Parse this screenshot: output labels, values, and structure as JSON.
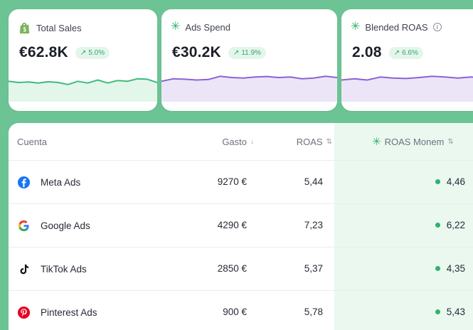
{
  "cards": [
    {
      "label": "Total Sales",
      "value": "€62.8K",
      "delta": "5.0%",
      "icon": "shopify-bag-icon",
      "line_color": "#3dbb7b",
      "fill_color": "#e3f6ea",
      "trend": [
        0.55,
        0.6,
        0.58,
        0.62,
        0.57,
        0.6,
        0.68,
        0.55,
        0.62,
        0.5,
        0.62,
        0.52,
        0.55,
        0.45,
        0.47,
        0.6
      ]
    },
    {
      "label": "Ads Spend",
      "value": "€30.2K",
      "delta": "11.9%",
      "icon": "sparkle-icon",
      "line_color": "#8b63d4",
      "fill_color": "#ece5f8",
      "trend": [
        0.55,
        0.45,
        0.47,
        0.5,
        0.48,
        0.35,
        0.4,
        0.42,
        0.38,
        0.36,
        0.4,
        0.38,
        0.45,
        0.42,
        0.35,
        0.4
      ]
    },
    {
      "label": "Blended ROAS",
      "value": "2.08",
      "delta": "6.6%",
      "icon": "sparkle-icon",
      "line_color": "#8b63d4",
      "fill_color": "#ece5f8",
      "trend": [
        0.5,
        0.45,
        0.5,
        0.38,
        0.42,
        0.44,
        0.4,
        0.35,
        0.38,
        0.42,
        0.38,
        0.4
      ]
    }
  ],
  "table": {
    "headers": {
      "account": "Cuenta",
      "spend": "Gasto",
      "roas": "ROAS",
      "roas_monem": "ROAS Monem"
    },
    "sort_desc": "↓",
    "sort_both": "⇅",
    "rows": [
      {
        "account": "Meta Ads",
        "icon": "facebook-icon",
        "spend": "9270 €",
        "roas": "5,44",
        "roas_monem": "4,46"
      },
      {
        "account": "Google Ads",
        "icon": "google-icon",
        "spend": "4290 €",
        "roas": "7,23",
        "roas_monem": "6,22"
      },
      {
        "account": "TikTok Ads",
        "icon": "tiktok-icon",
        "spend": "2850 €",
        "roas": "5,37",
        "roas_monem": "4,35"
      },
      {
        "account": "Pinterest Ads",
        "icon": "pinterest-icon",
        "spend": "900 €",
        "roas": "5,78",
        "roas_monem": "5,43"
      }
    ]
  },
  "colors": {
    "page_bg": "#6cc494",
    "accent_green": "#2eb36d",
    "monem_col_bg": "#eaf8f0"
  }
}
